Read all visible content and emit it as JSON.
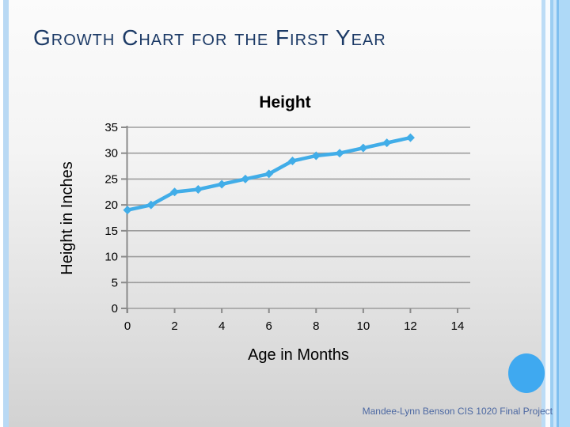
{
  "slide": {
    "title": "Growth Chart for the First Year"
  },
  "footer": {
    "text": "Mandee-Lynn Benson CIS 1020 Final Project"
  },
  "theme": {
    "slide_title_color": "#1C3A66",
    "footer_color": "#4C68A2",
    "chart_text_color": "#000000",
    "line_color": "#41ADE8",
    "gridline_color": "#9D9D9D",
    "axis_color": "#8A8A8A",
    "circle_color": "#3FA9F0",
    "left_stripe_color": "#B9D9F4",
    "right_stripe_colors": [
      "#BCDCF6",
      "#F8FBFE",
      "#9CCEF2",
      "#C9E5FA",
      "#7FBFEF",
      "#AED9F7"
    ]
  },
  "chart_data": {
    "type": "line",
    "title": "Height",
    "xlabel": "Age in Months",
    "ylabel": "Height in Inches",
    "x": [
      0,
      1,
      2,
      3,
      4,
      5,
      6,
      7,
      8,
      9,
      10,
      11,
      12
    ],
    "series": [
      {
        "name": "Height",
        "values": [
          19,
          20,
          22.5,
          23,
          24,
          25,
          26,
          28.5,
          29.5,
          30,
          31,
          32,
          33
        ]
      }
    ],
    "xlim": [
      0,
      14
    ],
    "ylim": [
      0,
      35
    ],
    "x_ticks": [
      0,
      2,
      4,
      6,
      8,
      10,
      12,
      14
    ],
    "y_ticks": [
      0,
      5,
      10,
      15,
      20,
      25,
      30,
      35
    ],
    "grid": "horizontal",
    "legend": "none",
    "marker": "diamond"
  }
}
